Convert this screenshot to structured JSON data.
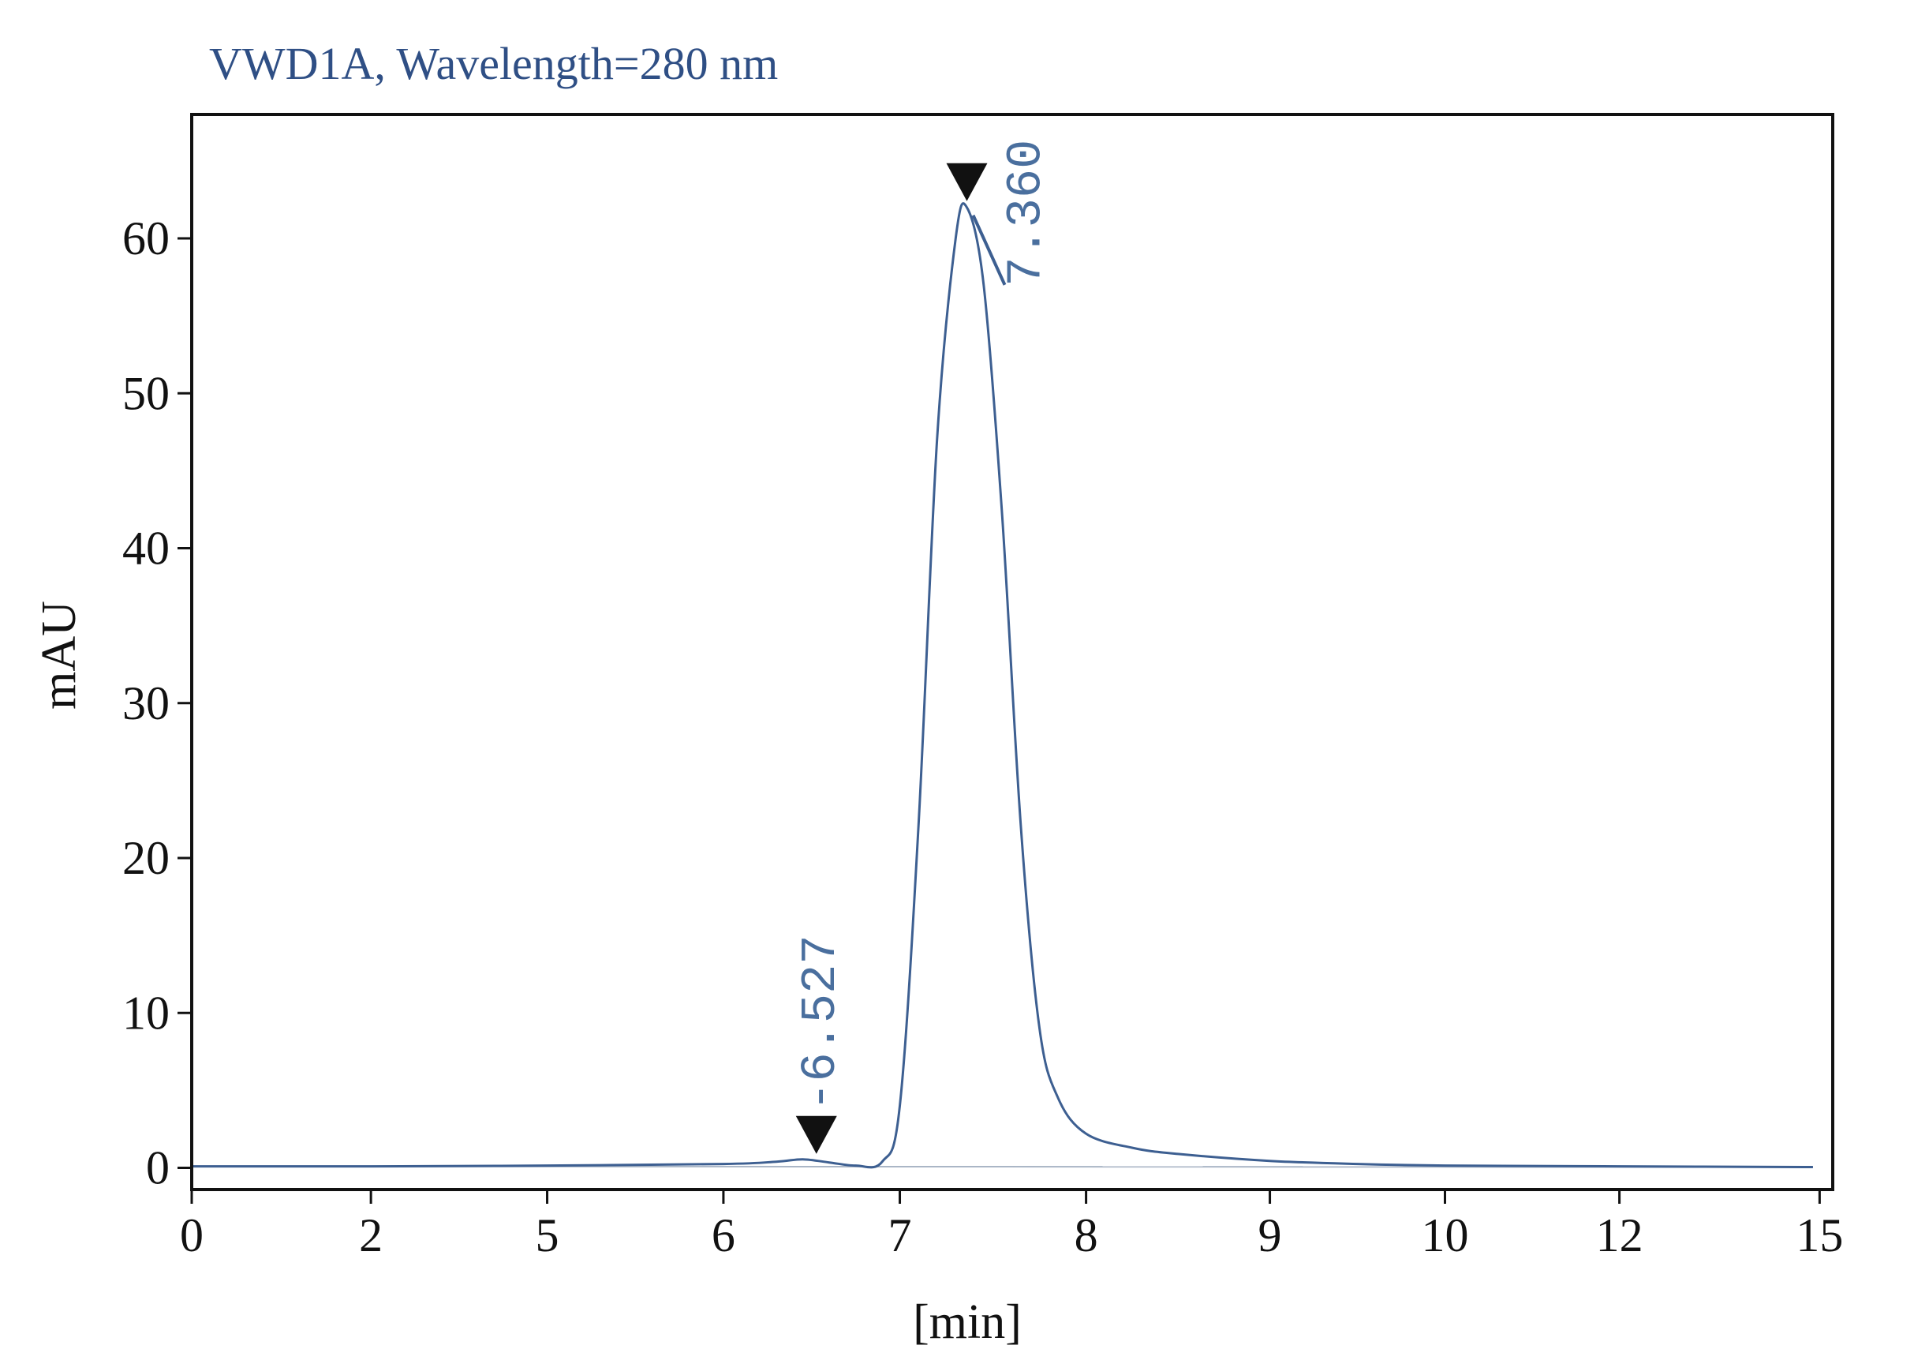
{
  "chart_data": {
    "type": "line",
    "title": "VWD1A, Wavelength=280 nm",
    "xlabel": "[min]",
    "ylabel": "mAU",
    "xlim": [
      0,
      15.2
    ],
    "ylim": [
      -1.4,
      68
    ],
    "x_ticks": [
      0,
      2,
      5,
      6,
      7,
      8,
      9,
      10,
      12,
      15
    ],
    "x_tick_labels": [
      "0",
      "2",
      "5",
      "6",
      "7",
      "8",
      "9",
      "10",
      "12",
      "15"
    ],
    "y_ticks": [
      0,
      10,
      20,
      30,
      40,
      50,
      60
    ],
    "y_tick_labels": [
      "0",
      "10",
      "20",
      "30",
      "40",
      "50",
      "60"
    ],
    "grid": false,
    "series": [
      {
        "color": "#3d5f91",
        "x": [
          0,
          2,
          5,
          6,
          6.3,
          6.45,
          6.6,
          6.75,
          6.9,
          7.0,
          7.1,
          7.2,
          7.3,
          7.36,
          7.45,
          7.55,
          7.65,
          7.75,
          7.85,
          8.0,
          8.25,
          8.5,
          9.0,
          9.5,
          10,
          12,
          14.9
        ],
        "y": [
          0.1,
          0.1,
          0.15,
          0.25,
          0.4,
          0.55,
          0.35,
          0.15,
          0.4,
          4,
          22,
          47,
          60,
          62,
          57,
          42,
          22,
          9,
          4.5,
          2.2,
          1.3,
          0.9,
          0.45,
          0.25,
          0.15,
          0.1,
          0.05
        ]
      }
    ],
    "baseline": {
      "color": "#aab6c6",
      "x": [
        0,
        14.9
      ],
      "y": [
        0.1,
        0.05
      ]
    },
    "peaks": [
      {
        "x": 6.527,
        "label": "-6.527",
        "y": 0.5
      },
      {
        "x": 7.36,
        "label": "7.360",
        "y": 62
      }
    ]
  }
}
